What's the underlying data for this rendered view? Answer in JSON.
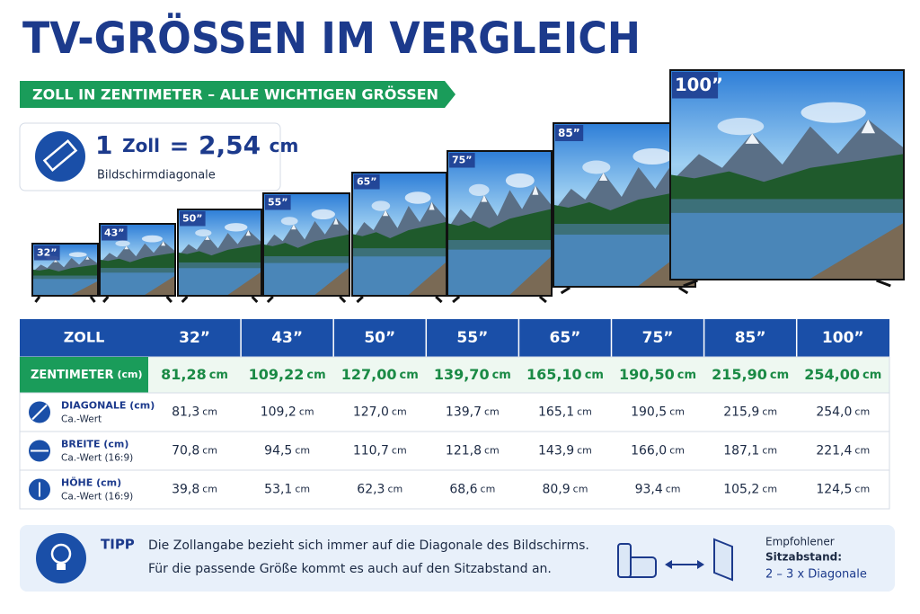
{
  "header": {
    "title": "TV-GRÖSSEN IM VERGLEICH",
    "subtitle": "ZOLL IN ZENTIMETER – ALLE WICHTIGEN GRÖSSEN"
  },
  "conversion": {
    "number": "1",
    "unit_from": "Zoll",
    "equals": "=",
    "value": "2,54",
    "unit_to": "cm",
    "caption": "Bildschirmdiagonale"
  },
  "table": {
    "header_label": "ZOLL",
    "sizes": [
      "32”",
      "43”",
      "50”",
      "55”",
      "65”",
      "75”",
      "85”",
      "100”"
    ],
    "rows": [
      {
        "label": "ZENTIMETER",
        "unit_label": "(cm)",
        "unit": "cm",
        "values": [
          "81,28",
          "109,22",
          "127,00",
          "139,70",
          "165,10",
          "190,50",
          "215,90",
          "254,00"
        ]
      },
      {
        "label": "DIAGONALE (cm)",
        "note": "Ca.-Wert",
        "unit": "cm",
        "values": [
          "81,3",
          "109,2",
          "127,0",
          "139,7",
          "165,1",
          "190,5",
          "215,9",
          "254,0"
        ]
      },
      {
        "label": "BREITE (cm)",
        "note": "Ca.-Wert (16:9)",
        "unit": "cm",
        "values": [
          "70,8",
          "94,5",
          "110,7",
          "121,8",
          "143,9",
          "166,0",
          "187,1",
          "221,4"
        ]
      },
      {
        "label": "HÖHE (cm)",
        "note": "Ca.-Wert (16:9)",
        "unit": "cm",
        "values": [
          "39,8",
          "53,1",
          "62,3",
          "68,6",
          "80,9",
          "93,4",
          "105,2",
          "124,5"
        ]
      }
    ]
  },
  "tip": {
    "title": "TIPP",
    "lines": [
      "Die Zollangabe bezieht sich immer auf die Diagonale des Bildschirms.",
      "Für die passende Größe kommt es auch auf den Sitzabstand an."
    ],
    "distance_label": [
      "Empfohlener",
      "Sitzabstand:"
    ],
    "distance_value": "2 – 3 x Diagonale"
  }
}
